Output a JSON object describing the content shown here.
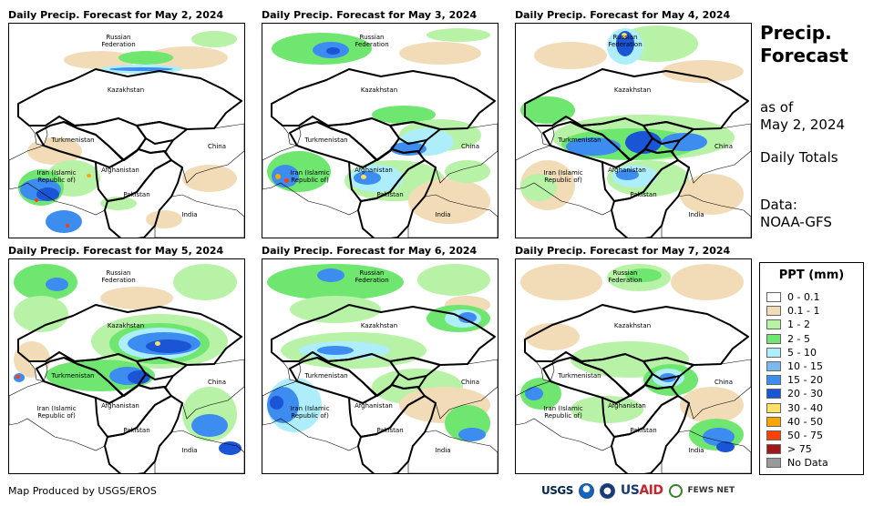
{
  "panels": [
    {
      "title": "Daily Precip. Forecast for May 2, 2024",
      "date": "May 2"
    },
    {
      "title": "Daily Precip. Forecast for May 3, 2024",
      "date": "May 3"
    },
    {
      "title": "Daily Precip. Forecast for May 4, 2024",
      "date": "May 4"
    },
    {
      "title": "Daily Precip. Forecast for May 5, 2024",
      "date": "May 5"
    },
    {
      "title": "Daily Precip. Forecast for May 6, 2024",
      "date": "May 6"
    },
    {
      "title": "Daily Precip. Forecast for May 7, 2024",
      "date": "May 7"
    }
  ],
  "map_labels": {
    "russia_line1": "Russian",
    "russia_line2": "Federation",
    "kazakhstan": "Kazakhstan",
    "turkmenistan": "Turkmenistan",
    "china": "China",
    "iran_line1": "Iran  (Islamic",
    "iran_line2": "Republic of)",
    "afghanistan": "Afghanistan",
    "pakistan": "Pakistan",
    "india": "India"
  },
  "side": {
    "title_line1": "Precip.",
    "title_line2": "Forecast",
    "asof_line1": "as of",
    "asof_line2": "May 2, 2024",
    "totals": "Daily Totals",
    "data_line1": "Data:",
    "data_line2": "NOAA-GFS"
  },
  "legend": {
    "title": "PPT (mm)",
    "items": [
      {
        "label": "0 - 0.1",
        "color": "#ffffff"
      },
      {
        "label": "0.1 - 1",
        "color": "#f2dcb8"
      },
      {
        "label": "1 - 2",
        "color": "#b7f2a6"
      },
      {
        "label": "2 - 5",
        "color": "#6fe66f"
      },
      {
        "label": "5 - 10",
        "color": "#aeeefa"
      },
      {
        "label": "10 - 15",
        "color": "#7ab8ef"
      },
      {
        "label": "15 - 20",
        "color": "#3d8cf0"
      },
      {
        "label": "20 - 30",
        "color": "#1a55d6"
      },
      {
        "label": "30 - 40",
        "color": "#ffe066"
      },
      {
        "label": "40 - 50",
        "color": "#ffa500"
      },
      {
        "label": "50 - 75",
        "color": "#ff4000"
      },
      {
        "label": "> 75",
        "color": "#a01818"
      },
      {
        "label": "No Data",
        "color": "#999999"
      }
    ]
  },
  "footer": {
    "credit": "Map Produced by USGS/EROS",
    "logo_usgs": "USGS",
    "logo_usaid_1": "US",
    "logo_usaid_2": "AID",
    "logo_fews": "FEWS NET"
  }
}
